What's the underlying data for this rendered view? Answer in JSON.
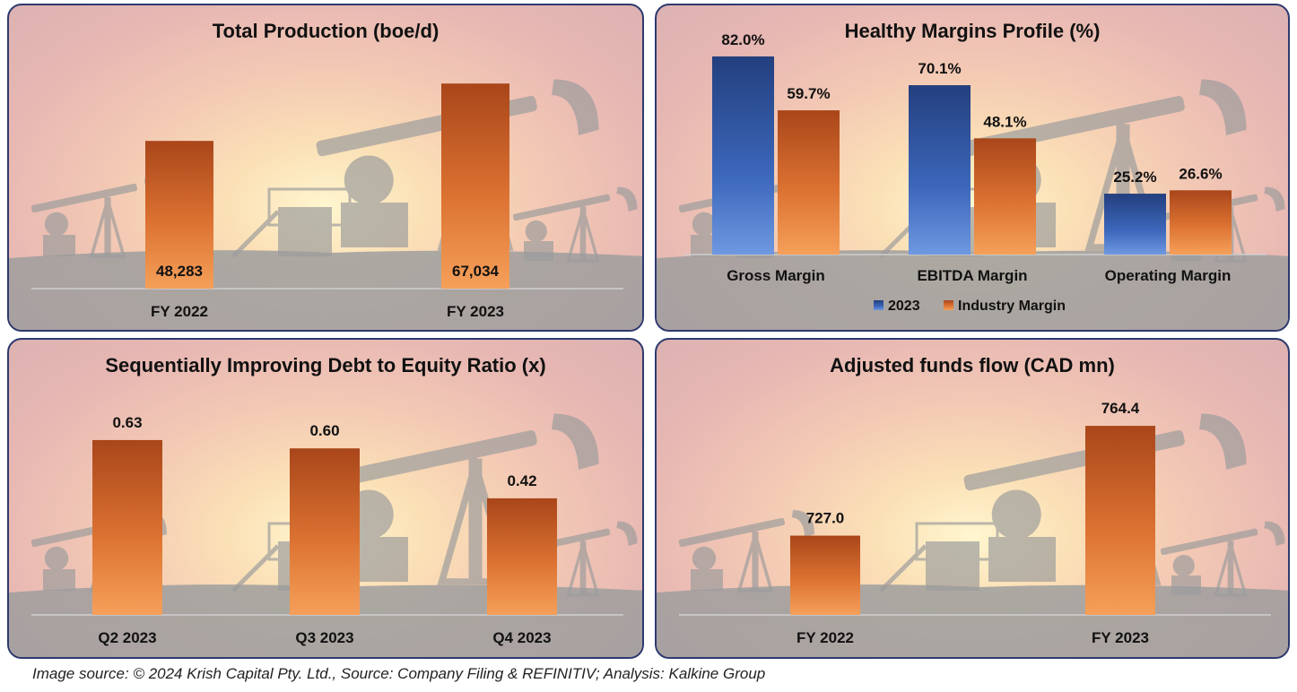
{
  "chart_data": [
    {
      "type": "bar",
      "title": "Total Production (boe/d)",
      "categories": [
        "FY 2022",
        "FY 2023"
      ],
      "values": [
        48283,
        67034
      ],
      "value_labels": [
        "48,283",
        "67,034"
      ],
      "ylim": [
        0,
        75000
      ],
      "label_position": "inside-bottom",
      "colors": {
        "bar": "#e07b39"
      }
    },
    {
      "type": "bar",
      "title": "Healthy Margins Profile (%)",
      "categories": [
        "Gross Margin",
        "EBITDA Margin",
        "Operating Margin"
      ],
      "series": [
        {
          "name": "2023",
          "values": [
            82.0,
            70.1,
            25.2
          ],
          "labels": [
            "82.0%",
            "70.1%",
            "25.2%"
          ],
          "color": "#2f5597"
        },
        {
          "name": "Industry Margin",
          "values": [
            59.7,
            48.1,
            26.6
          ],
          "labels": [
            "59.7%",
            "48.1%",
            "26.6%"
          ],
          "color": "#e07b39"
        }
      ],
      "ylim": [
        0,
        92
      ],
      "legend": "bottom"
    },
    {
      "type": "bar",
      "title": "Sequentially Improving Debt to Equity Ratio (x)",
      "categories": [
        "Q2 2023",
        "Q3 2023",
        "Q4 2023"
      ],
      "values": [
        0.63,
        0.6,
        0.42
      ],
      "value_labels": [
        "0.63",
        "0.60",
        "0.42"
      ],
      "ylim": [
        0,
        0.83
      ],
      "label_position": "above",
      "colors": {
        "bar": "#e07b39"
      }
    },
    {
      "type": "bar",
      "title": "Adjusted funds flow (CAD mn)",
      "categories": [
        "FY 2022",
        "FY 2023"
      ],
      "values": [
        727.0,
        764.4
      ],
      "value_labels": [
        "727.0",
        "764.4"
      ],
      "ylim": [
        700,
        780
      ],
      "label_position": "above",
      "colors": {
        "bar": "#e07b39"
      }
    }
  ],
  "footnote": "Image source: © 2024 Krish Capital Pty. Ltd., Source: Company Filing & REFINITIV; Analysis: Kalkine Group"
}
